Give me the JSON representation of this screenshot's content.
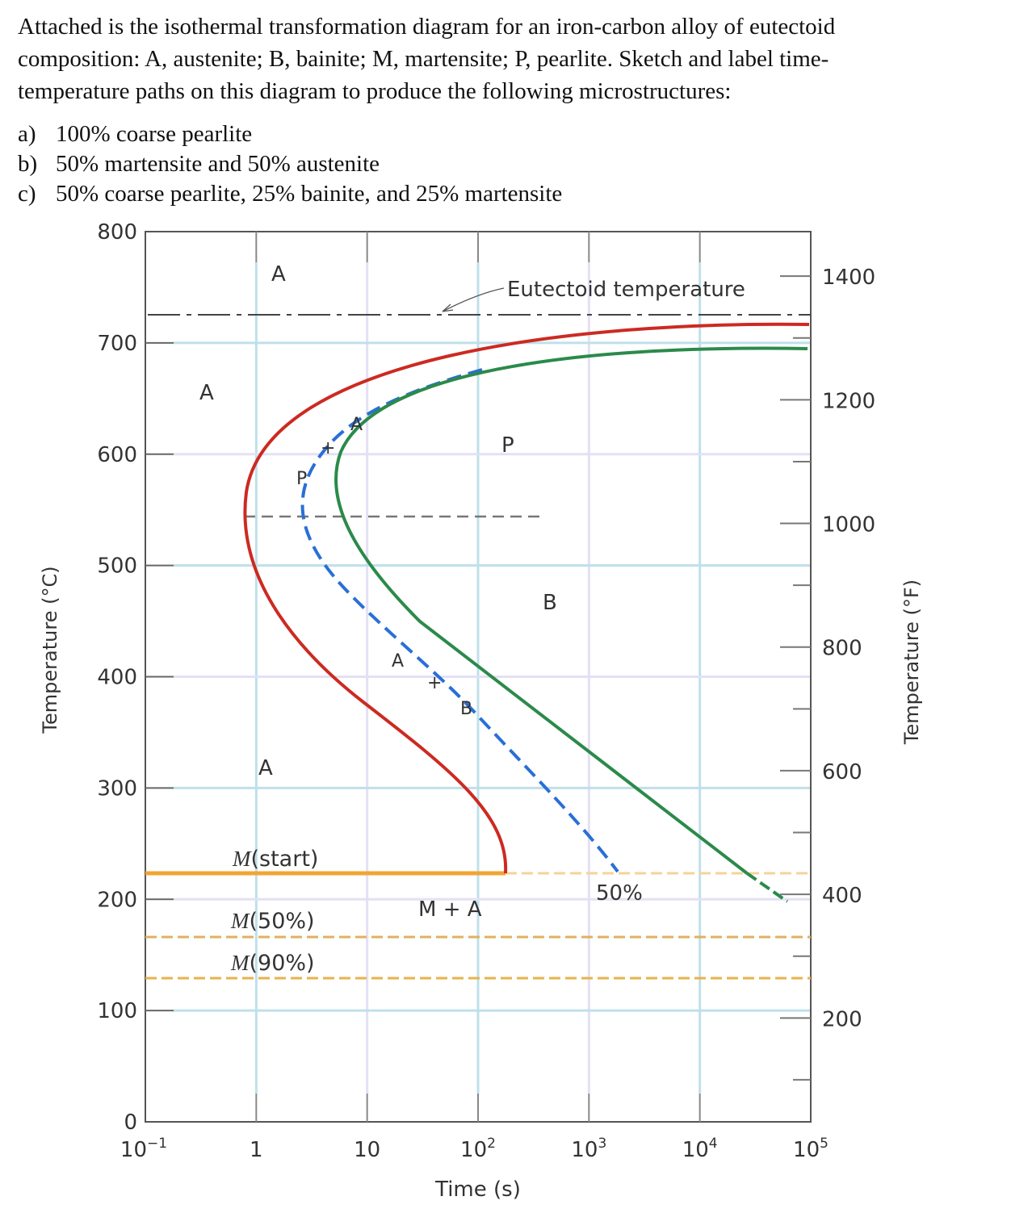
{
  "question": {
    "lines": [
      "Attached is the isothermal transformation diagram for an iron-carbon alloy of eutectoid",
      "composition: A, austenite; B, bainite; M, martensite; P, pearlite. Sketch and label time-",
      "temperature paths on this diagram to produce the following microstructures:"
    ],
    "options": [
      {
        "letter": "a)",
        "text": "100% coarse pearlite"
      },
      {
        "letter": "b)",
        "text": "50% martensite and 50% austenite"
      },
      {
        "letter": "c)",
        "text": "50% coarse pearlite, 25% bainite, and 25% martensite"
      }
    ]
  },
  "diagram": {
    "x_label": "Time (s)",
    "y_label_left": "Temperature (°C)",
    "y_label_right": "Temperature (°F)",
    "x_ticks": [
      "10",
      "1",
      "10",
      "10",
      "10",
      "10",
      "10"
    ],
    "x_tick_exponents": [
      "−1",
      "",
      "",
      "2",
      "3",
      "4",
      "5"
    ],
    "y_ticks_left": [
      "0",
      "100",
      "200",
      "300",
      "400",
      "500",
      "600",
      "700",
      "800"
    ],
    "y_ticks_right": [
      "200",
      "400",
      "600",
      "800",
      "1000",
      "1200",
      "1400"
    ],
    "labels": {
      "eutectoid": "Eutectoid temperature",
      "a_top": "A",
      "a_left": "A",
      "a_lower": "A",
      "p_region": "P",
      "b_region": "B",
      "m_start": "(start)",
      "m50": "(50%)",
      "m90": "(90%)",
      "m_italic": "M",
      "m_plus_a": "M + A",
      "fifty": "50%",
      "blue_a1": "A",
      "blue_plus1": "+",
      "blue_p": "P",
      "blue_a2": "A",
      "blue_plus2": "+",
      "blue_b": "B"
    },
    "colors": {
      "start_curve": "#cc2a22",
      "fifty_curve": "#2a6fd6",
      "finish_curve": "#2b8a4a",
      "martensite": "#f2a531",
      "grid_blue": "#bfe0ea",
      "grid_lavender": "#e4e0f4"
    }
  }
}
